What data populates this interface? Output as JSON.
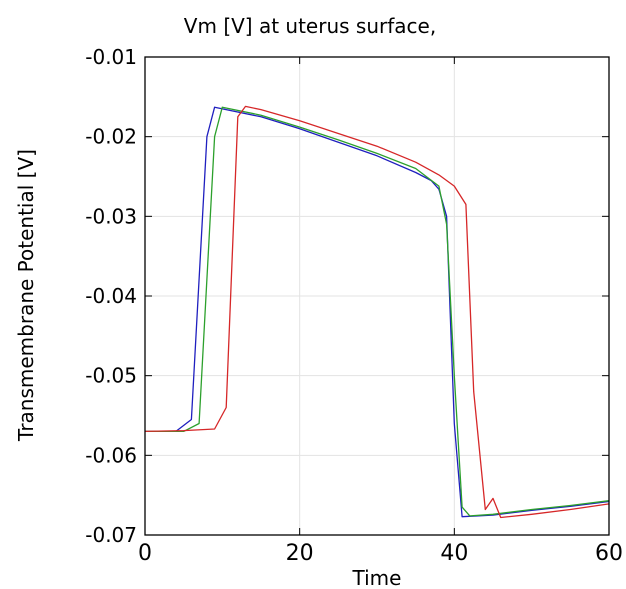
{
  "chart_data": {
    "type": "line",
    "title": "Vm [V] at uterus surface,",
    "xlabel": "Time",
    "ylabel": "Transmembrane Potential [V]",
    "xlim": [
      0,
      60
    ],
    "ylim": [
      -0.07,
      -0.01
    ],
    "xticks": [
      0,
      20,
      40,
      60
    ],
    "xtick_labels": [
      "0",
      "20",
      "40",
      "60"
    ],
    "yticks": [
      -0.01,
      -0.02,
      -0.03,
      -0.04,
      -0.05,
      -0.06,
      -0.07
    ],
    "ytick_labels": [
      "-0.01",
      "-0.02",
      "-0.03",
      "-0.04",
      "-0.05",
      "-0.06",
      "-0.07"
    ],
    "grid": true,
    "series": [
      {
        "color": "#1f1fbf",
        "x": [
          0,
          4,
          6,
          8,
          9,
          15,
          20,
          25,
          30,
          35,
          37,
          38,
          39,
          40,
          41,
          45,
          50,
          55,
          60
        ],
        "y": [
          -0.057,
          -0.057,
          -0.0555,
          -0.02,
          -0.0163,
          -0.0175,
          -0.019,
          -0.0207,
          -0.0224,
          -0.0245,
          -0.0255,
          -0.0266,
          -0.03,
          -0.056,
          -0.0677,
          -0.0675,
          -0.0669,
          -0.0664,
          -0.0658
        ]
      },
      {
        "color": "#2ca02c",
        "x": [
          0,
          5,
          7,
          9,
          10,
          15,
          20,
          25,
          30,
          35,
          38,
          39,
          40,
          41,
          42,
          45,
          50,
          55,
          60
        ],
        "y": [
          -0.057,
          -0.057,
          -0.056,
          -0.02,
          -0.0163,
          -0.0173,
          -0.0188,
          -0.0204,
          -0.0221,
          -0.024,
          -0.0262,
          -0.031,
          -0.05,
          -0.0665,
          -0.0676,
          -0.0674,
          -0.0668,
          -0.0663,
          -0.0657
        ]
      },
      {
        "color": "#d62728",
        "x": [
          0,
          5,
          9,
          10.5,
          12,
          13,
          15,
          20,
          25,
          30,
          35,
          38,
          40,
          41.5,
          42.5,
          44,
          45,
          46,
          50,
          55,
          60
        ],
        "y": [
          -0.057,
          -0.0569,
          -0.0567,
          -0.054,
          -0.0175,
          -0.0162,
          -0.0166,
          -0.018,
          -0.0196,
          -0.0212,
          -0.0232,
          -0.0248,
          -0.0262,
          -0.0285,
          -0.052,
          -0.0668,
          -0.0654,
          -0.0678,
          -0.0674,
          -0.0668,
          -0.0661
        ]
      }
    ]
  }
}
